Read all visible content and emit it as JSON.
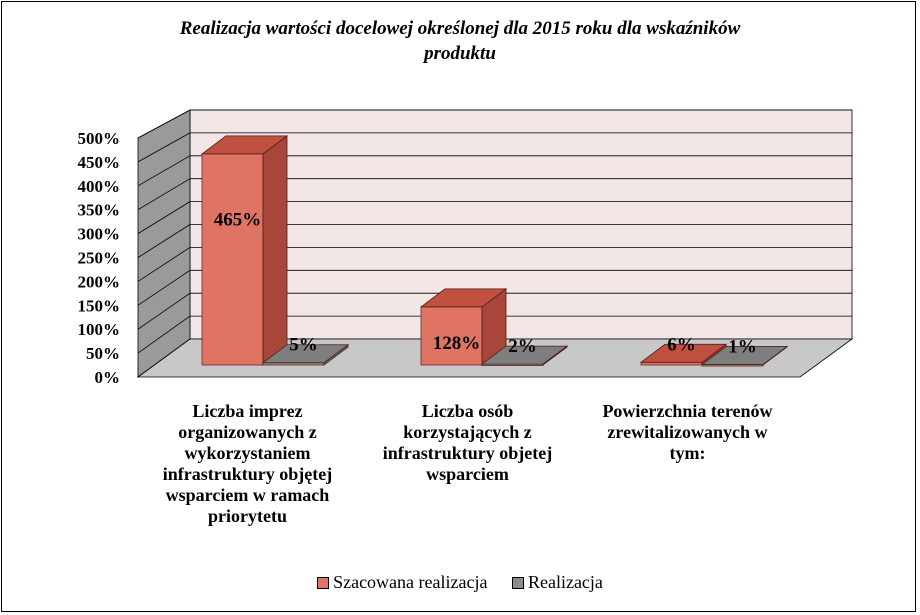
{
  "chart_data": {
    "type": "bar",
    "title_lines": [
      "Realizacja wartości docelowej  określonej dla 2015 roku dla wskaźników",
      "produktu"
    ],
    "categories": [
      [
        "Liczba imprez",
        "organizowanych z",
        "wykorzystaniem",
        "infrastruktury objętej",
        "wsparciem w ramach",
        "priorytetu"
      ],
      [
        "Liczba osób",
        "korzystających z",
        "infrastruktury objetej",
        "wsparciem"
      ],
      [
        "Powierzchnia terenów",
        "zrewitalizowanych w",
        "tym:"
      ]
    ],
    "series": [
      {
        "name": "Szacowana realizacja",
        "values": [
          465,
          128,
          6
        ],
        "labels": [
          "465%",
          "128%",
          "6%"
        ],
        "color": "#E07464",
        "side_color": "#A8463A",
        "top_color": "#C0503F"
      },
      {
        "name": "Realizacja",
        "values": [
          5,
          2,
          1
        ],
        "labels": [
          "5%",
          "2%",
          "1%"
        ],
        "color": "#8C8C8C",
        "side_color": "#6E6E6E",
        "top_color": "#7E7E7E"
      }
    ],
    "yticks": [
      "0%",
      "50%",
      "100%",
      "150%",
      "200%",
      "250%",
      "300%",
      "350%",
      "400%",
      "450%",
      "500%"
    ],
    "ylim": [
      0,
      500
    ],
    "grid": true,
    "legend_position": "bottom",
    "wall_color": "#F2E6E6",
    "floor_color": "#C8C8C8"
  }
}
